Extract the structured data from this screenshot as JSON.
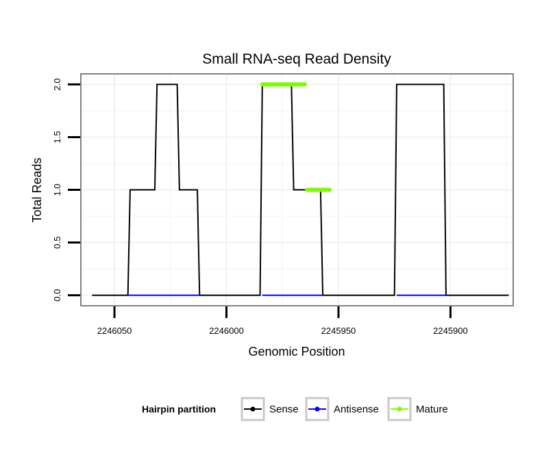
{
  "chart_data": {
    "type": "line",
    "title": "Small RNA-seq Read Density",
    "xlabel": "Genomic Position",
    "ylabel": "Total Reads",
    "xlim": [
      2246065,
      2245872
    ],
    "ylim": [
      -0.1,
      2.1
    ],
    "x_reversed": true,
    "x_ticks": [
      2246050,
      2246000,
      2245950,
      2245900
    ],
    "x_tick_labels": [
      "2246050",
      "2246000",
      "2245950",
      "2245900"
    ],
    "y_ticks": [
      0.0,
      0.5,
      1.0,
      1.5,
      2.0
    ],
    "y_tick_labels": [
      "0.0",
      "0.5",
      "1.0",
      "1.5",
      "2.0"
    ],
    "grid": true,
    "legend": {
      "title": "Hairpin partition",
      "position": "bottom",
      "entries": [
        "Sense",
        "Antisense",
        "Mature"
      ]
    },
    "series": [
      {
        "name": "Sense",
        "color": "#000000",
        "x": [
          2246060,
          2246044,
          2246043,
          2246032,
          2246031,
          2246022,
          2246021,
          2246013,
          2246012,
          2245985,
          2245984,
          2245971,
          2245970,
          2245958,
          2245957,
          2245925,
          2245924,
          2245903,
          2245902,
          2245874
        ],
        "y": [
          0,
          0,
          1,
          1,
          2,
          2,
          1,
          1,
          0,
          0,
          2,
          2,
          1,
          1,
          0,
          0,
          2,
          2,
          0,
          0
        ]
      },
      {
        "name": "Antisense",
        "color": "#0000ff",
        "segments": [
          {
            "x": [
              2246044,
              2246012
            ],
            "y": [
              0,
              0
            ]
          },
          {
            "x": [
              2245984,
              2245957
            ],
            "y": [
              0,
              0
            ]
          },
          {
            "x": [
              2245924,
              2245902
            ],
            "y": [
              0,
              0
            ]
          }
        ]
      },
      {
        "name": "Mature",
        "color": "#7cfc00",
        "segments": [
          {
            "x": [
              2245984,
              2245965
            ],
            "y": [
              2,
              2
            ]
          },
          {
            "x": [
              2245964,
              2245954
            ],
            "y": [
              1,
              1
            ]
          }
        ]
      }
    ]
  }
}
